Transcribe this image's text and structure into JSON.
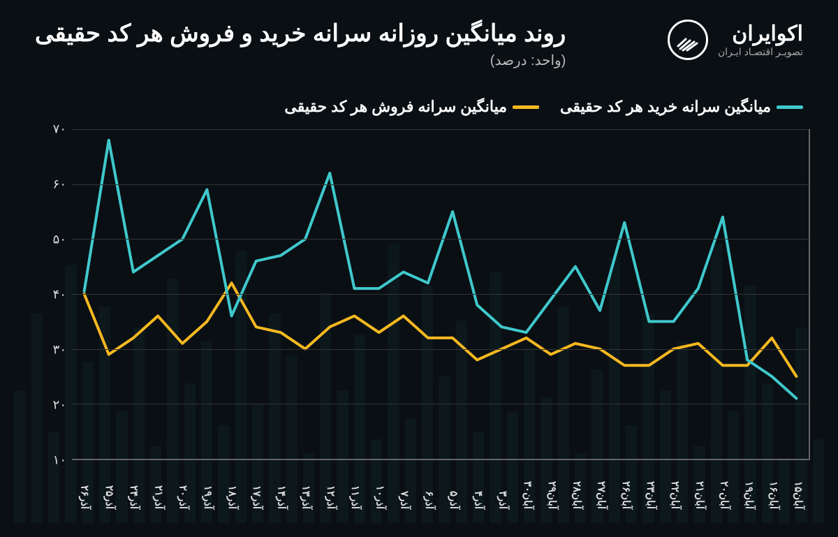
{
  "title": "روند میانگین روزانه سرانه خرید و فروش هر کد حقیقی",
  "subtitle": "(واحد: درصد)",
  "brand": {
    "name": "اکوایران",
    "tagline": "تصویـر اقتصـاد ایـران"
  },
  "legend": {
    "buy": {
      "label": "میانگین سرانه خرید هر کد حقیقی",
      "color": "#3fc8cc"
    },
    "sell": {
      "label": "میانگین سرانه فروش هر کد حقیقی",
      "color": "#f5b820"
    }
  },
  "chart": {
    "type": "line",
    "background_color": "#0a0f14",
    "grid_color": "#333333",
    "axis_color": "#666666",
    "text_color": "#dddddd",
    "line_width": 4,
    "ylim": [
      10,
      70
    ],
    "yticks": [
      10,
      20,
      30,
      40,
      50,
      60,
      70
    ],
    "ytick_labels": [
      "۱۰",
      "۲۰",
      "۳۰",
      "۴۰",
      "۵۰",
      "۶۰",
      "۷۰"
    ],
    "categories": [
      "آبان۱۵",
      "آبان۱۶",
      "آبان۱۹",
      "آبان۲۰",
      "آبان۲۱",
      "آبان۲۲",
      "آبان۲۳",
      "آبان۲۶",
      "آبان۲۷",
      "آبان۲۸",
      "آبان۲۹",
      "آبان۳۰",
      "آذر۳",
      "آذر۴",
      "آذر۵",
      "آذر۶",
      "آذر۷",
      "آذر۱۰",
      "آذر۱۱",
      "آذر۱۲",
      "آذر۱۳",
      "آذر۱۴",
      "آذر۱۷",
      "آذر۱۸",
      "آذر۱۹",
      "آذر۲۰",
      "آذر۲۱",
      "آذر۲۴",
      "آذر۲۵",
      "آذر۲۶"
    ],
    "series": {
      "buy": {
        "color": "#3fc8cc",
        "values": [
          21,
          25,
          28,
          54,
          41,
          35,
          35,
          53,
          37,
          45,
          39,
          33,
          34,
          38,
          55,
          42,
          44,
          41,
          41,
          62,
          50,
          47,
          46,
          36,
          59,
          50,
          47,
          44,
          68,
          40.5
        ]
      },
      "sell": {
        "color": "#f5b820",
        "values": [
          25,
          32,
          27,
          27,
          31,
          30,
          27,
          27,
          30,
          31,
          29,
          32,
          30,
          28,
          32,
          32,
          36,
          33,
          36,
          34,
          30,
          33,
          34,
          42,
          35,
          31,
          36,
          32,
          29,
          40
        ]
      }
    },
    "title_fontsize": 34,
    "label_fontsize": 18,
    "legend_fontsize": 22
  },
  "bg_bars": [
    120,
    280,
    90,
    200,
    340,
    160,
    400,
    110,
    260,
    190,
    300,
    140,
    380,
    220,
    100,
    310,
    180,
    250,
    160,
    360,
    130,
    290,
    210,
    340,
    150,
    400,
    120,
    270,
    190,
    330,
    100,
    240,
    300,
    170,
    390,
    140,
    260,
    200,
    350,
    110,
    280,
    160,
    310,
    230,
    370,
    130,
    300,
    190
  ]
}
